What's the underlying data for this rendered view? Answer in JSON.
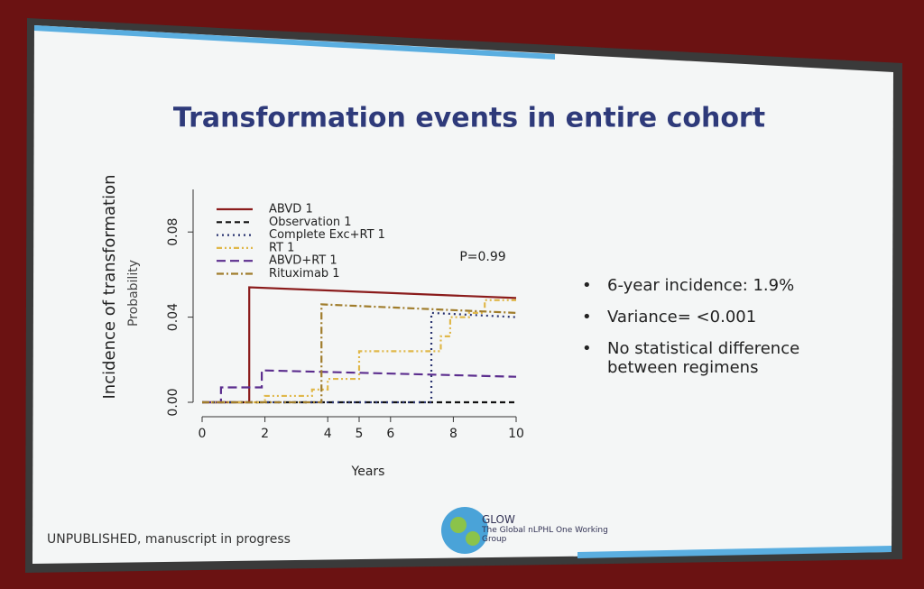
{
  "chart_data": {
    "type": "line",
    "title": "Transformation events in entire cohort",
    "y_label": "Incidence of transformation",
    "y_sublabel": "Probability",
    "x_label": "Years",
    "annotation": "P=0.99",
    "xlim": [
      0,
      10
    ],
    "xticks": [
      0,
      2,
      4,
      5,
      6,
      8,
      10
    ],
    "ylim": [
      0,
      0.1
    ],
    "yticks": [
      {
        "value": 0,
        "label": "0.00"
      },
      0.04,
      0.08
    ],
    "legend": "upper left",
    "series": [
      {
        "name": "ABVD 1",
        "color": "#8b1c1c",
        "dash": "none",
        "x": [
          0,
          1.5,
          1.5,
          10
        ],
        "values": [
          0,
          0,
          0.054,
          0.049
        ]
      },
      {
        "name": "Observation 1",
        "color": "#111111",
        "dash": "6,4",
        "x": [
          0,
          10
        ],
        "values": [
          0,
          0
        ]
      },
      {
        "name": "Complete Exc+RT 1",
        "color": "#2a3470",
        "dash": "2,4",
        "x": [
          0,
          7.3,
          7.3,
          10
        ],
        "values": [
          0,
          0,
          0.042,
          0.04
        ]
      },
      {
        "name": "RT 1",
        "color": "#e0b84a",
        "dash": "6,3,2,3,2,3",
        "x": [
          0,
          2,
          2,
          3.5,
          3.5,
          4,
          4,
          5,
          5,
          7.6,
          7.6,
          7.9,
          7.9,
          8.5,
          8.5,
          9,
          9,
          10
        ],
        "values": [
          0,
          0,
          0.003,
          0.003,
          0.006,
          0.006,
          0.011,
          0.011,
          0.024,
          0.024,
          0.031,
          0.031,
          0.04,
          0.04,
          0.042,
          0.042,
          0.048,
          0.048
        ]
      },
      {
        "name": "ABVD+RT 1",
        "color": "#5b2d8e",
        "dash": "10,5",
        "x": [
          0,
          0.6,
          0.6,
          1.9,
          1.9,
          10
        ],
        "values": [
          0,
          0,
          0.007,
          0.007,
          0.015,
          0.012
        ]
      },
      {
        "name": "Rituximab 1",
        "color": "#a07d2c",
        "dash": "8,3,2,3",
        "x": [
          0,
          3.8,
          3.8,
          10
        ],
        "values": [
          0,
          0,
          0.046,
          0.042
        ]
      }
    ]
  },
  "bullets": [
    "6-year incidence: 1.9%",
    "Variance= <0.001",
    "No statistical difference between regimens"
  ],
  "footer": "UNPUBLISHED, manuscript in progress",
  "logo": {
    "name": "GLOW",
    "subtitle": "The Global nLPHL One Working Group"
  }
}
